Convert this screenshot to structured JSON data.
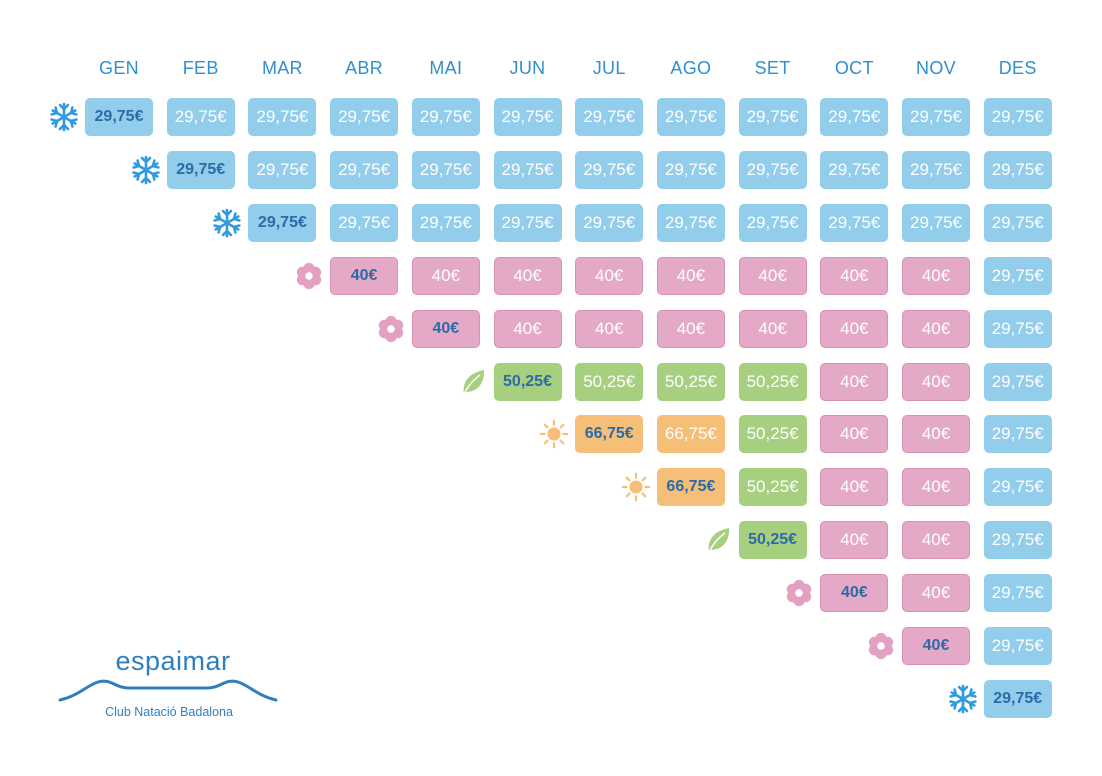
{
  "months": [
    "GEN",
    "FEB",
    "MAR",
    "ABR",
    "MAI",
    "JUN",
    "JUL",
    "AGO",
    "SET",
    "OCT",
    "NOV",
    "DES"
  ],
  "seasons": {
    "winter": {
      "icon": "snowflake-icon",
      "color": "#93cdec",
      "icon_color": "#2f9ae0"
    },
    "spring": {
      "icon": "flower-icon",
      "color": "#e5a9c8",
      "icon_color": "#e3a0c2"
    },
    "green": {
      "icon": "leaf-icon",
      "color": "#a6cf7f",
      "icon_color": "#a6cf7f"
    },
    "summer": {
      "icon": "sun-icon",
      "color": "#f6bf77",
      "icon_color": "#f6bf77"
    }
  },
  "rows": [
    {
      "start": 0,
      "icon": "winter",
      "cells": [
        [
          "winter",
          "29,75€"
        ],
        [
          "winter",
          "29,75€"
        ],
        [
          "winter",
          "29,75€"
        ],
        [
          "winter",
          "29,75€"
        ],
        [
          "winter",
          "29,75€"
        ],
        [
          "winter",
          "29,75€"
        ],
        [
          "winter",
          "29,75€"
        ],
        [
          "winter",
          "29,75€"
        ],
        [
          "winter",
          "29,75€"
        ],
        [
          "winter",
          "29,75€"
        ],
        [
          "winter",
          "29,75€"
        ],
        [
          "winter",
          "29,75€"
        ]
      ]
    },
    {
      "start": 1,
      "icon": "winter",
      "cells": [
        [
          "winter",
          "29,75€"
        ],
        [
          "winter",
          "29,75€"
        ],
        [
          "winter",
          "29,75€"
        ],
        [
          "winter",
          "29,75€"
        ],
        [
          "winter",
          "29,75€"
        ],
        [
          "winter",
          "29,75€"
        ],
        [
          "winter",
          "29,75€"
        ],
        [
          "winter",
          "29,75€"
        ],
        [
          "winter",
          "29,75€"
        ],
        [
          "winter",
          "29,75€"
        ],
        [
          "winter",
          "29,75€"
        ]
      ]
    },
    {
      "start": 2,
      "icon": "winter",
      "cells": [
        [
          "winter",
          "29,75€"
        ],
        [
          "winter",
          "29,75€"
        ],
        [
          "winter",
          "29,75€"
        ],
        [
          "winter",
          "29,75€"
        ],
        [
          "winter",
          "29,75€"
        ],
        [
          "winter",
          "29,75€"
        ],
        [
          "winter",
          "29,75€"
        ],
        [
          "winter",
          "29,75€"
        ],
        [
          "winter",
          "29,75€"
        ],
        [
          "winter",
          "29,75€"
        ]
      ]
    },
    {
      "start": 3,
      "icon": "spring",
      "cells": [
        [
          "spring",
          "40€"
        ],
        [
          "spring",
          "40€"
        ],
        [
          "spring",
          "40€"
        ],
        [
          "spring",
          "40€"
        ],
        [
          "spring",
          "40€"
        ],
        [
          "spring",
          "40€"
        ],
        [
          "spring",
          "40€"
        ],
        [
          "spring",
          "40€"
        ],
        [
          "winter",
          "29,75€"
        ]
      ]
    },
    {
      "start": 4,
      "icon": "spring",
      "cells": [
        [
          "spring",
          "40€"
        ],
        [
          "spring",
          "40€"
        ],
        [
          "spring",
          "40€"
        ],
        [
          "spring",
          "40€"
        ],
        [
          "spring",
          "40€"
        ],
        [
          "spring",
          "40€"
        ],
        [
          "spring",
          "40€"
        ],
        [
          "winter",
          "29,75€"
        ]
      ]
    },
    {
      "start": 5,
      "icon": "green",
      "cells": [
        [
          "green",
          "50,25€"
        ],
        [
          "green",
          "50,25€"
        ],
        [
          "green",
          "50,25€"
        ],
        [
          "green",
          "50,25€"
        ],
        [
          "spring",
          "40€"
        ],
        [
          "spring",
          "40€"
        ],
        [
          "winter",
          "29,75€"
        ]
      ]
    },
    {
      "start": 6,
      "icon": "summer",
      "cells": [
        [
          "summer",
          "66,75€"
        ],
        [
          "summer",
          "66,75€"
        ],
        [
          "green",
          "50,25€"
        ],
        [
          "spring",
          "40€"
        ],
        [
          "spring",
          "40€"
        ],
        [
          "winter",
          "29,75€"
        ]
      ]
    },
    {
      "start": 7,
      "icon": "summer",
      "cells": [
        [
          "summer",
          "66,75€"
        ],
        [
          "green",
          "50,25€"
        ],
        [
          "spring",
          "40€"
        ],
        [
          "spring",
          "40€"
        ],
        [
          "winter",
          "29,75€"
        ]
      ]
    },
    {
      "start": 8,
      "icon": "green",
      "cells": [
        [
          "green",
          "50,25€"
        ],
        [
          "spring",
          "40€"
        ],
        [
          "spring",
          "40€"
        ],
        [
          "winter",
          "29,75€"
        ]
      ]
    },
    {
      "start": 9,
      "icon": "spring",
      "cells": [
        [
          "spring",
          "40€"
        ],
        [
          "spring",
          "40€"
        ],
        [
          "winter",
          "29,75€"
        ]
      ]
    },
    {
      "start": 10,
      "icon": "spring",
      "cells": [
        [
          "spring",
          "40€"
        ],
        [
          "winter",
          "29,75€"
        ]
      ]
    },
    {
      "start": 11,
      "icon": "winter",
      "cells": [
        [
          "winter",
          "29,75€"
        ]
      ]
    }
  ],
  "logo": {
    "name": "espaimar",
    "subtitle": "Club Natació Badalona",
    "color": "#2f7fbf"
  }
}
